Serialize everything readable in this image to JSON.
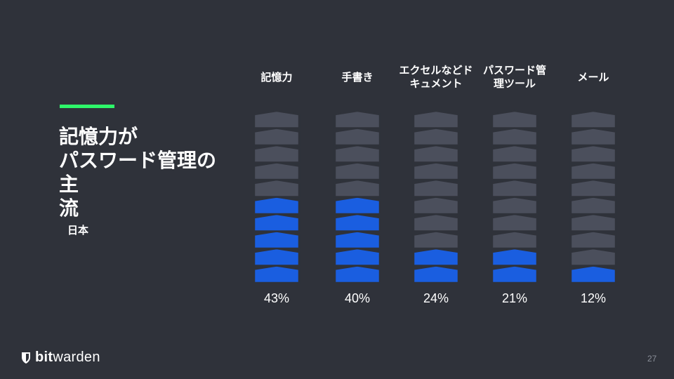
{
  "slide": {
    "title_lines": [
      "記憶力が",
      "パスワード管理の主",
      "流"
    ],
    "subtitle": "日本",
    "page_number": "27",
    "accent_color": "#2ef76a",
    "background_color": "#2f323a"
  },
  "brand": {
    "name_bold": "bit",
    "name_regular": "warden",
    "icon": "shield-icon"
  },
  "chart_data": {
    "type": "bar",
    "categories": [
      [
        "記憶力"
      ],
      [
        "手書き"
      ],
      [
        "エクセルなどド",
        "キュメント"
      ],
      [
        "パスワード管",
        "理ツール"
      ],
      [
        "メール"
      ]
    ],
    "values": [
      43,
      40,
      24,
      21,
      12
    ],
    "value_labels": [
      "43%",
      "40%",
      "24%",
      "21%",
      "12%"
    ],
    "filled_segments": [
      5,
      5,
      2,
      2,
      1
    ],
    "total_segments": 10,
    "colors": {
      "filled": "#1a5ee0",
      "empty": "#4b4f5c",
      "separator": "#2f323a"
    }
  }
}
